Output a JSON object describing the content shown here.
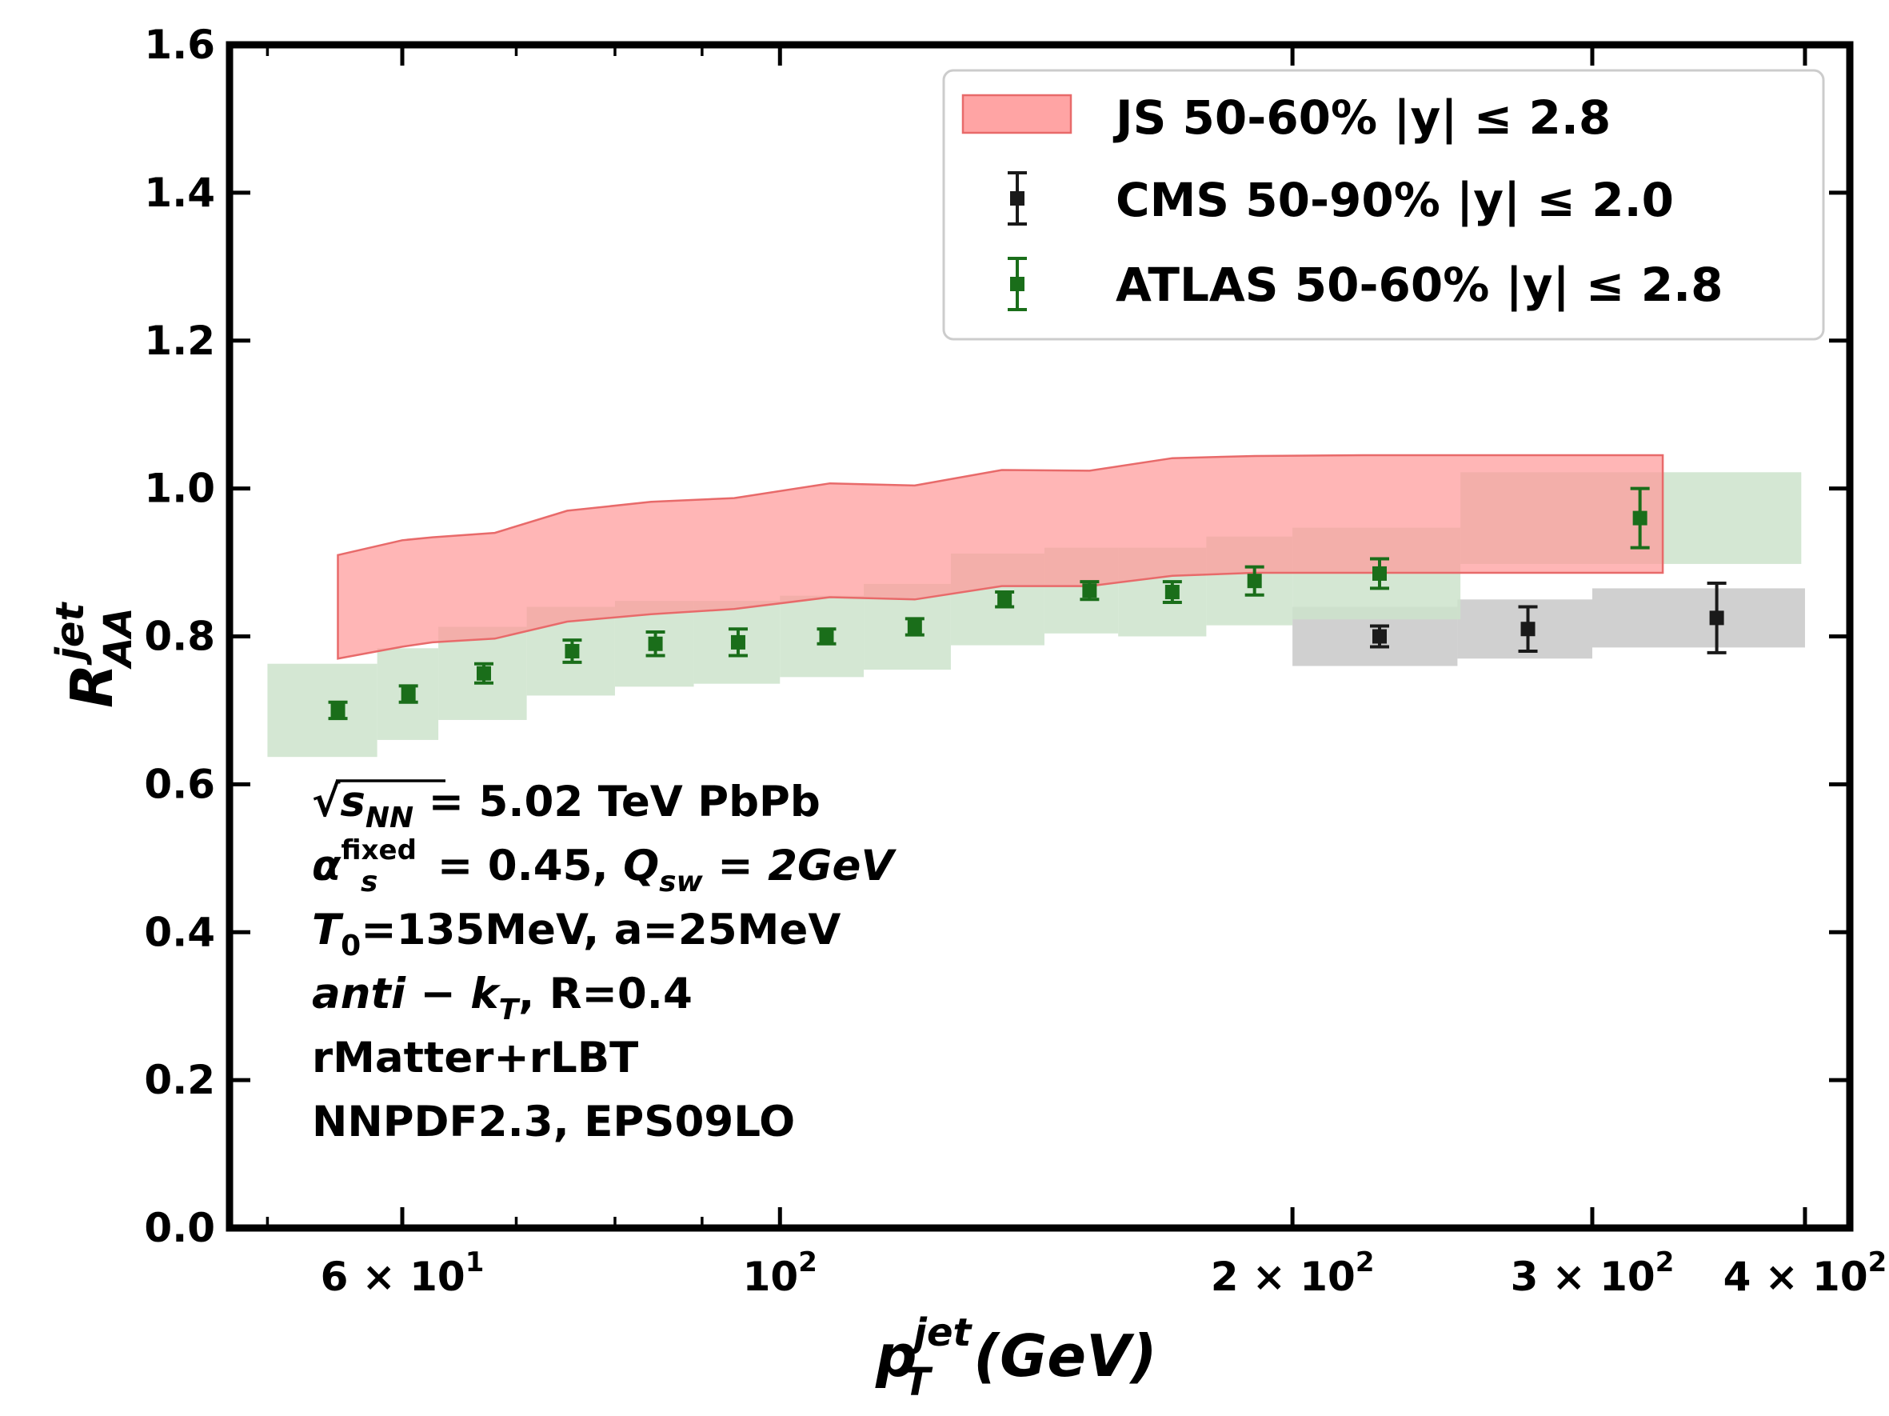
{
  "chart_data": {
    "type": "scatter",
    "xscale": "log",
    "xlim": [
      47.5,
      425
    ],
    "ylim": [
      0.0,
      1.6
    ],
    "yticks": [
      "0.0",
      "0.2",
      "0.4",
      "0.6",
      "0.8",
      "1.0",
      "1.2",
      "1.4",
      "1.6"
    ],
    "xticks": [
      {
        "value": 60,
        "mantissa": "6 × 10",
        "exp": "1"
      },
      {
        "value": 100,
        "mantissa": "10",
        "exp": "2"
      },
      {
        "value": 200,
        "mantissa": "2 × 10",
        "exp": "2"
      },
      {
        "value": 300,
        "mantissa": "3 × 10",
        "exp": "2"
      },
      {
        "value": 400,
        "mantissa": "4 × 10",
        "exp": "2"
      }
    ],
    "xlabel": {
      "base": "p",
      "sup": "jet",
      "sub": "T",
      "unit": "(GeV)"
    },
    "ylabel": {
      "base": "R",
      "sup": "jet",
      "sub": "AA"
    },
    "band": {
      "name": "JS 50-60% |y| ≤ 2.8",
      "color": "#ff9a9a",
      "edge": "#e86a6a",
      "x": [
        55.0,
        60.0,
        62.5,
        68.0,
        75.0,
        84.0,
        94.0,
        107.0,
        120.0,
        135.0,
        152.0,
        170.0,
        190.0,
        220.0,
        255.0,
        300.0,
        330.0
      ],
      "lower": [
        0.77,
        0.786,
        0.792,
        0.797,
        0.82,
        0.83,
        0.837,
        0.853,
        0.85,
        0.868,
        0.868,
        0.882,
        0.886,
        0.886,
        0.886,
        0.886,
        0.886
      ],
      "upper": [
        0.91,
        0.93,
        0.934,
        0.94,
        0.97,
        0.982,
        0.987,
        1.007,
        1.004,
        1.025,
        1.024,
        1.041,
        1.044,
        1.045,
        1.045,
        1.045,
        1.045
      ]
    },
    "series": [
      {
        "name": "CMS 50-90% |y| ≤ 2.0",
        "color": "#1a1a1a",
        "sys_color": "#c8c8c8",
        "x": [
          225,
          275,
          355
        ],
        "y": [
          0.8,
          0.81,
          0.825
        ],
        "err": [
          0.014,
          0.03,
          0.047
        ],
        "sys": [
          0.04,
          0.04,
          0.04
        ],
        "bins": [
          [
            200,
            250
          ],
          [
            250,
            300
          ],
          [
            300,
            400
          ]
        ]
      },
      {
        "name": "ATLAS 50-60% |y| ≤ 2.8",
        "color": "#1a6e1a",
        "sys_color": "#cde3cb",
        "x": [
          55.0,
          60.5,
          67.0,
          75.5,
          84.5,
          94.5,
          106.5,
          120.0,
          135.5,
          152.0,
          170.0,
          190.0,
          225.0,
          320.0
        ],
        "y": [
          0.7,
          0.722,
          0.75,
          0.78,
          0.79,
          0.792,
          0.8,
          0.813,
          0.85,
          0.862,
          0.86,
          0.875,
          0.885,
          0.96
        ],
        "err": [
          0.011,
          0.011,
          0.013,
          0.015,
          0.016,
          0.018,
          0.01,
          0.011,
          0.01,
          0.012,
          0.014,
          0.019,
          0.02,
          0.04
        ],
        "sys": [
          0.063,
          0.062,
          0.063,
          0.06,
          0.058,
          0.056,
          0.055,
          0.058,
          0.062,
          0.058,
          0.06,
          0.06,
          0.062,
          0.062
        ],
        "bins": [
          [
            50,
            58
          ],
          [
            58,
            63
          ],
          [
            63,
            71
          ],
          [
            71,
            80
          ],
          [
            80,
            89
          ],
          [
            89,
            100
          ],
          [
            100,
            112
          ],
          [
            112,
            126
          ],
          [
            126,
            143
          ],
          [
            143,
            158
          ],
          [
            158,
            178
          ],
          [
            178,
            200
          ],
          [
            200,
            251
          ],
          [
            251,
            398
          ]
        ]
      }
    ],
    "annotations": [
      {
        "kind": "sqrt",
        "rad": "s",
        "rad_sub": "NN",
        "rest": " = 5.02 TeV PbPb"
      },
      {
        "kind": "alpha",
        "sym": "α",
        "sup": "fixed",
        "sub": "s",
        "mid": " = 0.45, ",
        "q": "Q",
        "q_sub": "sw",
        "rest": " = 2GeV"
      },
      {
        "kind": "temp",
        "sym": "T",
        "sub": "0",
        "rest": "=135MeV, a=25MeV"
      },
      {
        "kind": "antikt",
        "ital": "anti − k",
        "sub": "T",
        "rest": ", R=0.4"
      },
      {
        "kind": "plain",
        "text": "rMatter+rLBT"
      },
      {
        "kind": "plain",
        "text": "NNPDF2.3, EPS09LO"
      }
    ]
  }
}
